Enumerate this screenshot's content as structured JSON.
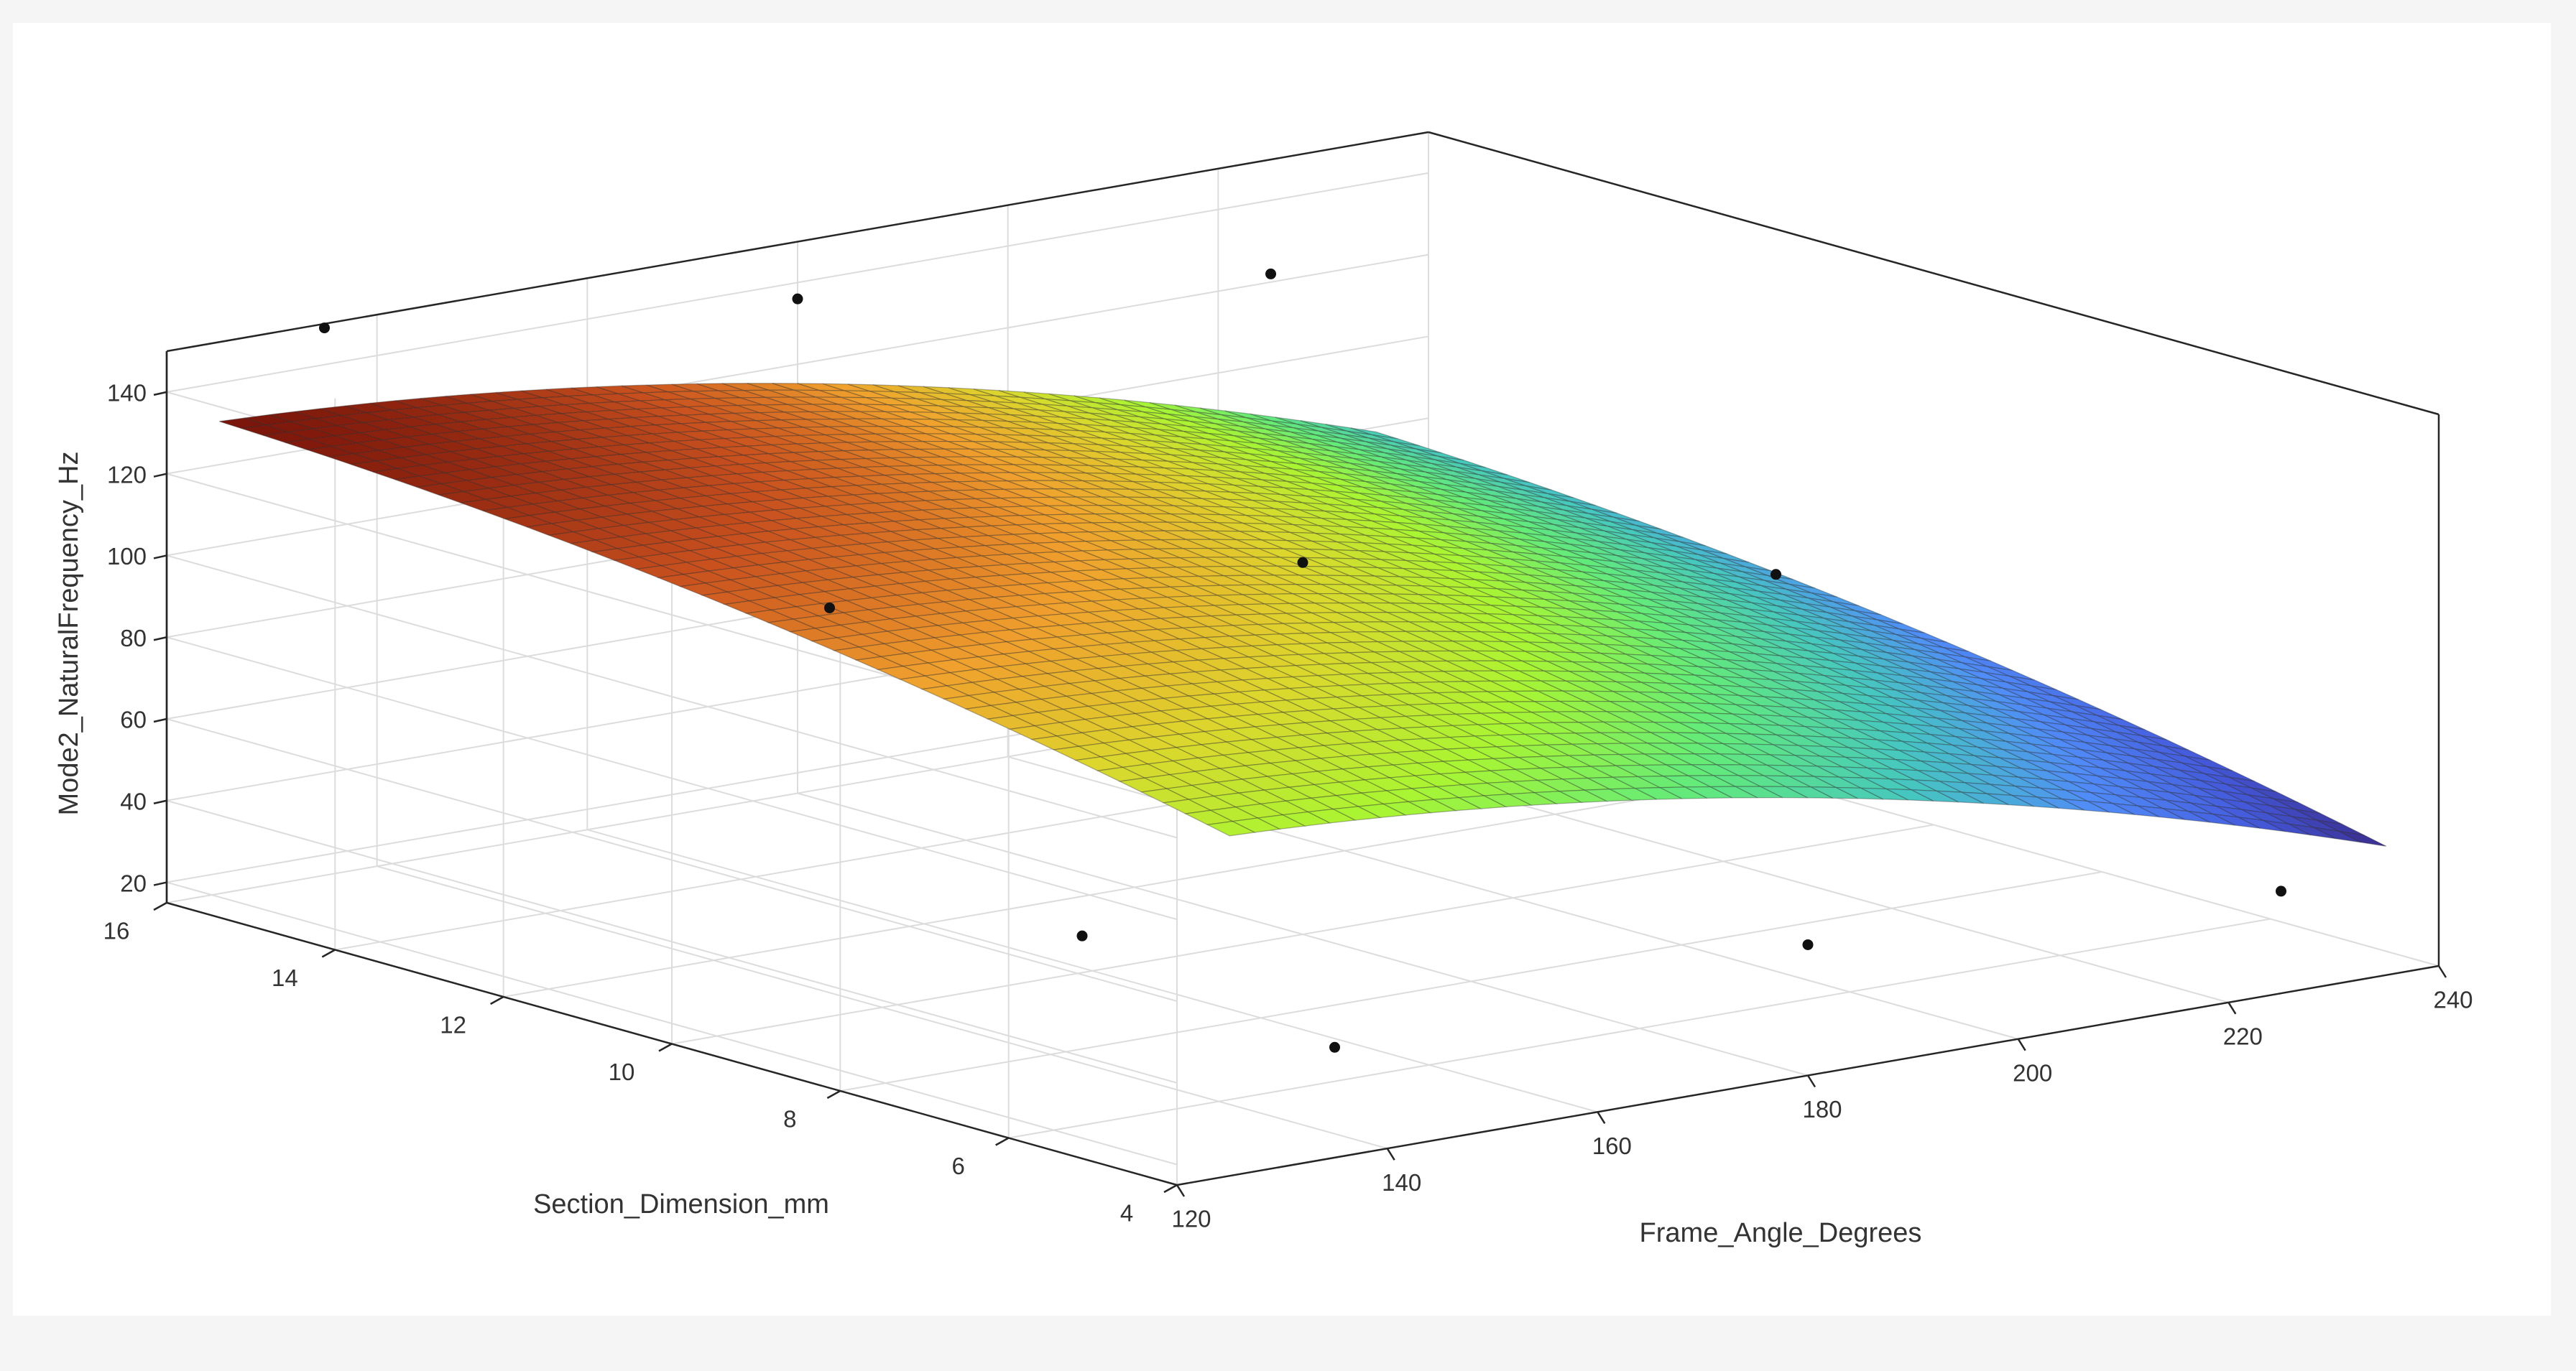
{
  "chart_data": {
    "type": "surface",
    "title": "",
    "xlabel": "Frame_Angle_Degrees",
    "ylabel": "Section_Dimension_mm",
    "zlabel": "Mode2_NaturalFrequency_Hz",
    "xlim": [
      120,
      240
    ],
    "ylim": [
      4,
      16
    ],
    "zlim": [
      15,
      150
    ],
    "xticks": [
      120,
      140,
      160,
      180,
      200,
      220,
      240
    ],
    "yticks": [
      4,
      6,
      8,
      10,
      12,
      14,
      16
    ],
    "zticks": [
      20,
      40,
      60,
      80,
      100,
      120,
      140
    ],
    "grid": true,
    "colormap": "turbo",
    "surface": {
      "x_range": [
        125,
        235
      ],
      "y_range": [
        4,
        16
      ],
      "grid_steps": 46,
      "model": "z = 137 - 0.4*(x-135) - 2.2*(16-y) - 0.0035*(x-170)^2 - 0.165*(y-11.5)^2"
    },
    "points": [
      {
        "x": 135,
        "y": 16,
        "z": 149
      },
      {
        "x": 180,
        "y": 16,
        "z": 136
      },
      {
        "x": 135,
        "y": 10,
        "z": 115
      },
      {
        "x": 180,
        "y": 10,
        "z": 106
      },
      {
        "x": 225,
        "y": 10,
        "z": 83
      },
      {
        "x": 135,
        "y": 4,
        "z": 42
      },
      {
        "x": 180,
        "y": 4,
        "z": 47
      },
      {
        "x": 225,
        "y": 4,
        "z": 40
      },
      {
        "x": 135,
        "y": 7,
        "z": 52
      },
      {
        "x": 225,
        "y": 16,
        "z": 122
      }
    ]
  }
}
